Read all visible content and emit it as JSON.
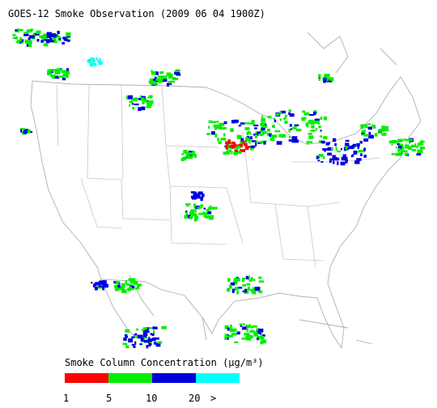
{
  "title": "GOES-12 Smoke Observation (2009 06 04  1900Z)",
  "legend": {
    "title": "Smoke Column Concentration (μg/m³)",
    "colors": [
      "#ff0000",
      "#00ee00",
      "#0000dd",
      "#00ffff"
    ],
    "labels": [
      "1",
      "5",
      "10",
      "20",
      ">"
    ]
  }
}
